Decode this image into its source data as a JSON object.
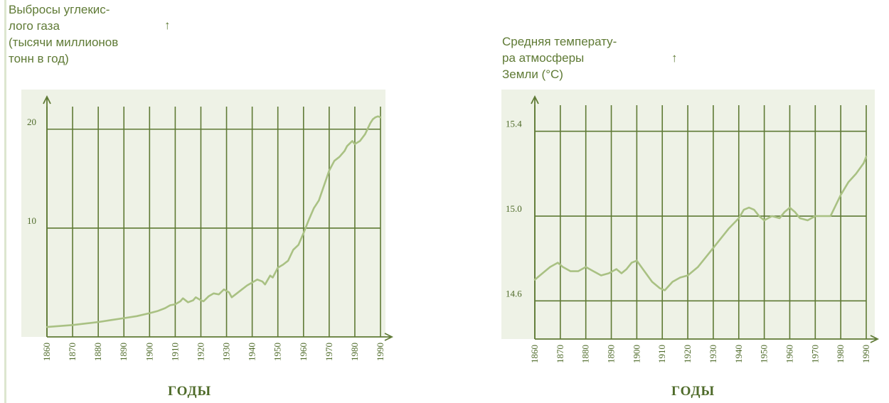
{
  "chart_data": [
    {
      "type": "line",
      "title": "",
      "ylabel_lines": [
        "Выбросы углекис-",
        "лого газа",
        "(тысячи миллионов",
        "тонн в год)"
      ],
      "xlabel": "ГОДЫ",
      "x_ticks": [
        "1860",
        "1870",
        "1880",
        "1890",
        "1900",
        "1910",
        "1920",
        "1930",
        "1940",
        "1950",
        "1960",
        "1970",
        "1980",
        "1990"
      ],
      "y_ticks": [
        {
          "value": 10,
          "label": "10"
        },
        {
          "value": 20,
          "label": "20"
        }
      ],
      "xlim": [
        1860,
        1990
      ],
      "ylim": [
        -1,
        23
      ],
      "grid": true,
      "series": [
        {
          "x": [
            1860,
            1865,
            1870,
            1875,
            1880,
            1885,
            1890,
            1895,
            1900,
            1903,
            1906,
            1908,
            1910,
            1912,
            1913,
            1915,
            1917,
            1918,
            1920,
            1921,
            1923,
            1925,
            1927,
            1929,
            1931,
            1932,
            1934,
            1936,
            1938,
            1940,
            1942,
            1944,
            1945,
            1947,
            1948,
            1950,
            1952,
            1954,
            1956,
            1958,
            1960,
            1962,
            1964,
            1966,
            1968,
            1970,
            1972,
            1974,
            1976,
            1977,
            1979,
            1980,
            1982,
            1984,
            1986,
            1987,
            1988,
            1989,
            1990
          ],
          "y": [
            0,
            0.1,
            0.2,
            0.35,
            0.5,
            0.7,
            0.9,
            1.1,
            1.4,
            1.6,
            1.9,
            2.2,
            2.3,
            2.6,
            2.9,
            2.5,
            2.7,
            3.0,
            2.7,
            2.6,
            3.1,
            3.4,
            3.3,
            3.8,
            3.5,
            3.0,
            3.4,
            3.8,
            4.2,
            4.5,
            4.8,
            4.6,
            4.3,
            5.2,
            5.0,
            6.0,
            6.3,
            6.7,
            7.8,
            8.3,
            9.5,
            10.8,
            12.0,
            12.8,
            14.3,
            15.8,
            16.8,
            17.2,
            17.8,
            18.3,
            18.8,
            18.5,
            18.8,
            19.5,
            20.6,
            21.0,
            21.2,
            21.3,
            21.2
          ]
        }
      ]
    },
    {
      "type": "line",
      "title": "",
      "ylabel_lines": [
        "Средняя температу-",
        "ра атмосферы",
        "Земли (°C)"
      ],
      "xlabel": "ГОДЫ",
      "x_ticks": [
        "1860",
        "1870",
        "1880",
        "1890",
        "1900",
        "1910",
        "1920",
        "1930",
        "1940",
        "1950",
        "1960",
        "1970",
        "1980",
        "1990"
      ],
      "y_ticks": [
        {
          "value": 14.6,
          "label": "14.6"
        },
        {
          "value": 15.0,
          "label": "15.0"
        },
        {
          "value": 15.4,
          "label": "15.4"
        }
      ],
      "xlim": [
        1860,
        1990
      ],
      "ylim": [
        14.42,
        15.55
      ],
      "grid": true,
      "series": [
        {
          "x": [
            1860,
            1863,
            1866,
            1869,
            1871,
            1874,
            1877,
            1880,
            1883,
            1886,
            1889,
            1892,
            1894,
            1896,
            1898,
            1900,
            1903,
            1906,
            1909,
            1911,
            1914,
            1917,
            1920,
            1924,
            1928,
            1932,
            1936,
            1940,
            1942,
            1944,
            1946,
            1948,
            1950,
            1953,
            1956,
            1958,
            1960,
            1962,
            1964,
            1967,
            1970,
            1973,
            1976,
            1978,
            1980,
            1983,
            1986,
            1989,
            1990
          ],
          "y": [
            14.7,
            14.73,
            14.76,
            14.78,
            14.76,
            14.74,
            14.74,
            14.76,
            14.74,
            14.72,
            14.73,
            14.75,
            14.73,
            14.75,
            14.78,
            14.79,
            14.74,
            14.69,
            14.66,
            14.65,
            14.69,
            14.71,
            14.72,
            14.76,
            14.82,
            14.88,
            14.94,
            14.99,
            15.03,
            15.04,
            15.03,
            15.0,
            14.98,
            15.0,
            14.99,
            15.02,
            15.04,
            15.02,
            14.99,
            14.98,
            15.0,
            15.0,
            15.0,
            15.05,
            15.1,
            15.16,
            15.2,
            15.25,
            15.28
          ]
        }
      ]
    }
  ]
}
